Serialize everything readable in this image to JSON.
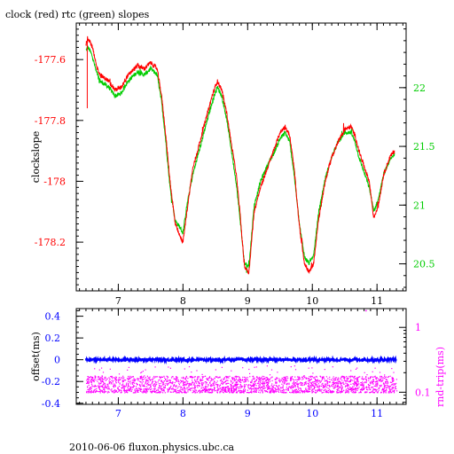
{
  "title": "clock (red) rtc (green) slopes",
  "footer": "2010-06-06 fluxon.physics.ubc.ca",
  "colors": {
    "clock": "#ff0000",
    "rtc": "#00cc00",
    "offset": "#0000ff",
    "roundtrip": "#ff00ff",
    "axes": "#000000"
  },
  "chart_data": [
    {
      "type": "line",
      "title": "clock (red) rtc (green) slopes",
      "xlabel": "",
      "ylabel": "clockslope",
      "y2label": "",
      "xlim": [
        6.35,
        11.45
      ],
      "ylim": [
        -178.36,
        -177.48
      ],
      "y2lim": [
        20.27,
        22.55
      ],
      "xticks": [
        7,
        8,
        9,
        10,
        11
      ],
      "yticks": [
        -177.6,
        -177.8,
        -178,
        -178.2
      ],
      "y2ticks": [
        22,
        21.5,
        21,
        20.5
      ],
      "ytick_labels": [
        "-177.6",
        "-177.8",
        "-178",
        "-178.2"
      ],
      "y2tick_labels": [
        "22",
        "21.5",
        "21",
        "20.5"
      ],
      "xtick_labels": [
        "7",
        "8",
        "9",
        "10",
        "11"
      ],
      "series": [
        {
          "name": "clock",
          "color": "#ff0000",
          "axis": "left",
          "x": [
            6.5,
            6.53,
            6.56,
            6.6,
            6.66,
            6.72,
            6.78,
            6.85,
            6.95,
            7.05,
            7.12,
            7.2,
            7.3,
            7.4,
            7.5,
            7.6,
            7.67,
            7.73,
            7.8,
            7.88,
            7.95,
            8.0,
            8.06,
            8.15,
            8.25,
            8.35,
            8.45,
            8.53,
            8.6,
            8.68,
            8.75,
            8.82,
            8.88,
            8.95,
            9.02,
            9.1,
            9.2,
            9.3,
            9.4,
            9.5,
            9.58,
            9.65,
            9.72,
            9.8,
            9.88,
            9.95,
            10.02,
            10.1,
            10.2,
            10.3,
            10.4,
            10.5,
            10.6,
            10.66,
            10.72,
            10.8,
            10.88,
            10.95,
            11.02,
            11.1,
            11.2,
            11.27
          ],
          "y": [
            -177.55,
            -177.53,
            -177.54,
            -177.56,
            -177.62,
            -177.65,
            -177.66,
            -177.67,
            -177.7,
            -177.69,
            -177.66,
            -177.64,
            -177.62,
            -177.63,
            -177.61,
            -177.63,
            -177.72,
            -177.84,
            -178.0,
            -178.14,
            -178.18,
            -178.2,
            -178.1,
            -177.96,
            -177.88,
            -177.8,
            -177.72,
            -177.67,
            -177.7,
            -177.78,
            -177.88,
            -177.97,
            -178.1,
            -178.28,
            -178.3,
            -178.1,
            -178.02,
            -177.96,
            -177.9,
            -177.84,
            -177.82,
            -177.85,
            -177.96,
            -178.15,
            -178.27,
            -178.3,
            -178.27,
            -178.12,
            -178.0,
            -177.92,
            -177.87,
            -177.83,
            -177.82,
            -177.85,
            -177.9,
            -177.95,
            -178.0,
            -178.12,
            -178.08,
            -177.98,
            -177.92,
            -177.9
          ]
        },
        {
          "name": "rtc",
          "color": "#00cc00",
          "axis": "left",
          "x": [
            6.5,
            6.53,
            6.56,
            6.6,
            6.66,
            6.72,
            6.78,
            6.85,
            6.95,
            7.05,
            7.12,
            7.2,
            7.3,
            7.4,
            7.5,
            7.6,
            7.67,
            7.73,
            7.8,
            7.88,
            7.95,
            8.0,
            8.06,
            8.15,
            8.25,
            8.35,
            8.45,
            8.53,
            8.6,
            8.68,
            8.75,
            8.82,
            8.88,
            8.95,
            9.02,
            9.1,
            9.2,
            9.3,
            9.4,
            9.5,
            9.58,
            9.65,
            9.72,
            9.8,
            9.88,
            9.95,
            10.02,
            10.1,
            10.2,
            10.3,
            10.4,
            10.5,
            10.6,
            10.66,
            10.72,
            10.8,
            10.88,
            10.95,
            11.02,
            11.1,
            11.2,
            11.27
          ],
          "y": [
            -177.57,
            -177.56,
            -177.57,
            -177.59,
            -177.64,
            -177.67,
            -177.68,
            -177.69,
            -177.72,
            -177.71,
            -177.68,
            -177.66,
            -177.64,
            -177.65,
            -177.63,
            -177.65,
            -177.74,
            -177.86,
            -178.02,
            -178.13,
            -178.15,
            -178.17,
            -178.08,
            -177.98,
            -177.9,
            -177.82,
            -177.74,
            -177.69,
            -177.72,
            -177.8,
            -177.9,
            -178.0,
            -178.12,
            -178.27,
            -178.28,
            -178.08,
            -178.0,
            -177.95,
            -177.91,
            -177.86,
            -177.84,
            -177.87,
            -177.98,
            -178.14,
            -178.25,
            -178.27,
            -178.24,
            -178.1,
            -177.99,
            -177.92,
            -177.87,
            -177.84,
            -177.84,
            -177.87,
            -177.92,
            -177.97,
            -178.02,
            -178.1,
            -178.06,
            -177.98,
            -177.93,
            -177.91
          ]
        }
      ]
    },
    {
      "type": "scatter",
      "xlabel": "",
      "ylabel": "offset(ms)",
      "y2label": "rnd-trip(ms)",
      "xlim": [
        6.35,
        11.45
      ],
      "ylim": [
        -0.41,
        0.47
      ],
      "y2scale": "log",
      "y2lim": [
        0.065,
        1.95
      ],
      "xticks": [
        7,
        8,
        9,
        10,
        11
      ],
      "xtick_labels": [
        "7",
        "8",
        "9",
        "10",
        "11"
      ],
      "yticks": [
        0.4,
        0.2,
        0,
        -0.2,
        -0.4
      ],
      "ytick_labels": [
        "0.4",
        "0.2",
        "0",
        "-0.2",
        "-0.4"
      ],
      "y2ticks": [
        1,
        0.1
      ],
      "y2tick_labels": [
        "1",
        "0.1"
      ],
      "series": [
        {
          "name": "offset",
          "color": "#0000ff",
          "axis": "left",
          "x_range": [
            6.5,
            11.3
          ],
          "level": 0.0,
          "spread": 0.012
        },
        {
          "name": "rnd-trip",
          "color": "#ff00ff",
          "axis": "right",
          "x_range": [
            6.5,
            11.3
          ],
          "level": 0.13,
          "spread_low": 0.1,
          "spread_high": 0.18
        }
      ]
    }
  ]
}
